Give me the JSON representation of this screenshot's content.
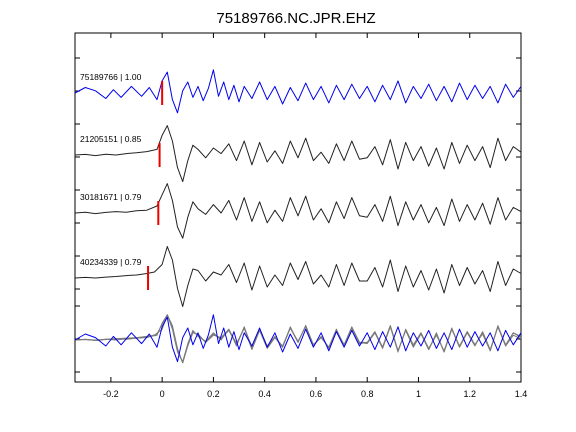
{
  "chart_data": {
    "type": "line",
    "title": "75189766.NC.JPR.EHZ",
    "xlabel": "",
    "ylabel": "",
    "xlim": [
      -0.34,
      1.4
    ],
    "xticks": [
      -0.2,
      0,
      0.2,
      0.4,
      0.6,
      0.8,
      1,
      1.2,
      1.4
    ],
    "xtick_labels": [
      "-0.2",
      "0",
      "0.2",
      "0.4",
      "0.6",
      "0.8",
      "1",
      "1.2",
      "1.4"
    ],
    "grid": false,
    "colors": {
      "master": "#0000ee",
      "other": "#222222",
      "overlay_other": "#7a7a7a",
      "pick": "#ee0000"
    },
    "traces": [
      {
        "label": "75189766 | 1.00",
        "pick_time": 0.0,
        "color": "blue",
        "times": [
          -0.34,
          -0.3,
          -0.26,
          -0.22,
          -0.19,
          -0.16,
          -0.12,
          -0.08,
          -0.05,
          -0.02,
          0.0,
          0.02,
          0.04,
          0.06,
          0.08,
          0.1,
          0.12,
          0.14,
          0.16,
          0.18,
          0.2,
          0.22,
          0.24,
          0.26,
          0.28,
          0.3,
          0.32,
          0.35,
          0.38,
          0.41,
          0.44,
          0.47,
          0.5,
          0.53,
          0.56,
          0.59,
          0.62,
          0.65,
          0.68,
          0.71,
          0.74,
          0.77,
          0.8,
          0.83,
          0.86,
          0.89,
          0.92,
          0.95,
          0.98,
          1.01,
          1.04,
          1.07,
          1.1,
          1.13,
          1.16,
          1.19,
          1.22,
          1.25,
          1.28,
          1.31,
          1.34,
          1.37,
          1.4
        ],
        "amplitudes": [
          0.0,
          0.25,
          0.1,
          -0.25,
          0.15,
          -0.2,
          0.3,
          -0.15,
          0.25,
          -0.3,
          0.55,
          0.95,
          -0.3,
          -0.9,
          0.1,
          0.5,
          -0.2,
          0.3,
          -0.35,
          0.2,
          1.05,
          -0.15,
          0.5,
          -0.3,
          0.35,
          -0.4,
          0.3,
          -0.25,
          0.5,
          -0.3,
          0.3,
          -0.5,
          0.25,
          -0.35,
          0.45,
          -0.3,
          0.3,
          -0.45,
          0.35,
          -0.3,
          0.4,
          -0.25,
          0.3,
          -0.4,
          0.35,
          -0.3,
          0.55,
          -0.45,
          0.3,
          -0.25,
          0.4,
          -0.35,
          0.3,
          -0.4,
          0.45,
          -0.3,
          0.35,
          -0.25,
          0.3,
          -0.45,
          0.4,
          -0.2,
          0.3
        ]
      },
      {
        "label": "21205151 | 0.85",
        "pick_time": -0.01,
        "color": "black",
        "times": [
          -0.34,
          -0.3,
          -0.26,
          -0.22,
          -0.18,
          -0.14,
          -0.1,
          -0.06,
          -0.02,
          0.0,
          0.02,
          0.04,
          0.06,
          0.08,
          0.1,
          0.12,
          0.14,
          0.17,
          0.2,
          0.23,
          0.26,
          0.29,
          0.32,
          0.35,
          0.38,
          0.41,
          0.44,
          0.47,
          0.5,
          0.53,
          0.56,
          0.59,
          0.62,
          0.65,
          0.68,
          0.71,
          0.74,
          0.77,
          0.8,
          0.83,
          0.86,
          0.89,
          0.92,
          0.95,
          0.98,
          1.01,
          1.04,
          1.07,
          1.1,
          1.13,
          1.16,
          1.19,
          1.22,
          1.25,
          1.28,
          1.31,
          1.34,
          1.37,
          1.4
        ],
        "amplitudes": [
          0.0,
          0.02,
          -0.02,
          0.03,
          0.0,
          0.05,
          0.08,
          0.12,
          0.2,
          0.7,
          1.05,
          0.5,
          -0.45,
          -0.95,
          -0.2,
          0.35,
          0.2,
          -0.1,
          0.25,
          0.05,
          0.4,
          -0.2,
          0.5,
          -0.35,
          0.45,
          -0.25,
          0.15,
          -0.3,
          0.5,
          -0.1,
          0.6,
          -0.2,
          0.1,
          -0.3,
          0.4,
          -0.2,
          0.5,
          -0.15,
          -0.1,
          0.3,
          -0.35,
          0.55,
          -0.5,
          0.45,
          -0.2,
          0.3,
          -0.4,
          0.25,
          -0.5,
          0.45,
          -0.3,
          0.35,
          -0.2,
          0.3,
          -0.45,
          0.6,
          -0.2,
          0.3,
          0.1
        ]
      },
      {
        "label": "30181671 | 0.79",
        "pick_time": -0.015,
        "color": "black",
        "times": [
          -0.34,
          -0.3,
          -0.26,
          -0.22,
          -0.18,
          -0.14,
          -0.1,
          -0.06,
          -0.02,
          0.0,
          0.02,
          0.04,
          0.06,
          0.08,
          0.1,
          0.12,
          0.14,
          0.17,
          0.2,
          0.23,
          0.26,
          0.29,
          0.32,
          0.35,
          0.38,
          0.41,
          0.44,
          0.47,
          0.5,
          0.53,
          0.56,
          0.59,
          0.62,
          0.65,
          0.68,
          0.71,
          0.74,
          0.77,
          0.8,
          0.83,
          0.86,
          0.89,
          0.92,
          0.95,
          0.98,
          1.01,
          1.04,
          1.07,
          1.1,
          1.13,
          1.16,
          1.19,
          1.22,
          1.25,
          1.28,
          1.31,
          1.34,
          1.37,
          1.4
        ],
        "amplitudes": [
          0.0,
          0.03,
          -0.02,
          0.02,
          0.05,
          0.03,
          0.08,
          0.1,
          0.25,
          0.65,
          1.05,
          0.45,
          -0.5,
          -0.9,
          -0.15,
          0.4,
          0.15,
          -0.05,
          0.3,
          0.0,
          0.45,
          -0.25,
          0.55,
          -0.3,
          0.4,
          -0.35,
          0.1,
          -0.3,
          0.55,
          -0.1,
          0.6,
          -0.25,
          0.15,
          -0.35,
          0.4,
          -0.2,
          0.55,
          -0.1,
          -0.15,
          0.3,
          -0.3,
          0.6,
          -0.45,
          0.4,
          -0.25,
          0.3,
          -0.35,
          0.2,
          -0.45,
          0.5,
          -0.3,
          0.3,
          -0.25,
          0.35,
          -0.4,
          0.55,
          -0.25,
          0.2,
          0.05
        ]
      },
      {
        "label": "40234339 | 0.79",
        "pick_time": -0.055,
        "color": "black",
        "times": [
          -0.34,
          -0.3,
          -0.26,
          -0.22,
          -0.18,
          -0.14,
          -0.1,
          -0.06,
          -0.03,
          0.0,
          0.02,
          0.04,
          0.06,
          0.08,
          0.1,
          0.12,
          0.14,
          0.17,
          0.2,
          0.23,
          0.26,
          0.29,
          0.32,
          0.35,
          0.38,
          0.41,
          0.44,
          0.47,
          0.5,
          0.53,
          0.56,
          0.59,
          0.62,
          0.65,
          0.68,
          0.71,
          0.74,
          0.77,
          0.8,
          0.83,
          0.86,
          0.89,
          0.92,
          0.95,
          0.98,
          1.01,
          1.04,
          1.07,
          1.1,
          1.13,
          1.16,
          1.19,
          1.22,
          1.25,
          1.28,
          1.31,
          1.34,
          1.37,
          1.4
        ],
        "amplitudes": [
          0.0,
          0.02,
          0.0,
          0.03,
          0.05,
          0.08,
          0.1,
          0.15,
          0.2,
          0.45,
          1.05,
          0.6,
          -0.35,
          -0.95,
          -0.25,
          0.3,
          0.25,
          -0.1,
          0.2,
          0.1,
          0.45,
          -0.15,
          0.5,
          -0.4,
          0.4,
          -0.3,
          0.1,
          -0.25,
          0.5,
          -0.05,
          0.55,
          -0.2,
          0.1,
          -0.3,
          0.45,
          -0.25,
          0.5,
          -0.1,
          -0.1,
          0.35,
          -0.3,
          0.6,
          -0.45,
          0.4,
          -0.3,
          0.25,
          -0.4,
          0.3,
          -0.5,
          0.45,
          -0.25,
          0.35,
          -0.2,
          0.25,
          -0.45,
          0.55,
          -0.25,
          0.3,
          0.15
        ]
      }
    ]
  }
}
